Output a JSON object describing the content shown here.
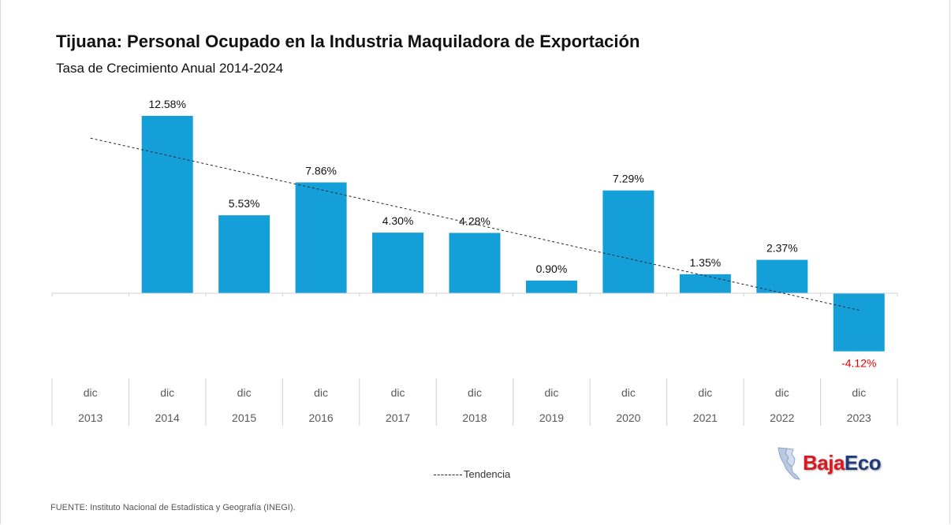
{
  "header": {
    "title": "Tijuana: Personal Ocupado en la Industria Maquiladora de Exportación",
    "subtitle": "Tasa de Crecimiento Anual 2014-2024"
  },
  "legend": {
    "trend_label": "Tendencia"
  },
  "source": "FUENTE: Instituto Nacional de Estadística y Geografía (INEGI).",
  "logo": {
    "part1": "Baja",
    "part2": "Eco"
  },
  "colors": {
    "bar": "#149fd9",
    "negative_label": "#e00000",
    "trend": "#222222"
  },
  "chart_data": {
    "type": "bar",
    "title": "Tijuana: Personal Ocupado en la Industria Maquiladora de Exportación",
    "subtitle": "Tasa de Crecimiento Anual 2014-2024",
    "categories": [
      {
        "month": "dic",
        "year": "2013"
      },
      {
        "month": "dic",
        "year": "2014"
      },
      {
        "month": "dic",
        "year": "2015"
      },
      {
        "month": "dic",
        "year": "2016"
      },
      {
        "month": "dic",
        "year": "2017"
      },
      {
        "month": "dic",
        "year": "2018"
      },
      {
        "month": "dic",
        "year": "2019"
      },
      {
        "month": "dic",
        "year": "2020"
      },
      {
        "month": "dic",
        "year": "2021"
      },
      {
        "month": "dic",
        "year": "2022"
      },
      {
        "month": "dic",
        "year": "2023"
      }
    ],
    "values": [
      null,
      12.58,
      5.53,
      7.86,
      4.3,
      4.28,
      0.9,
      7.29,
      1.35,
      2.37,
      -4.12
    ],
    "labels": [
      "",
      "12.58%",
      "5.53%",
      "7.86%",
      "4.30%",
      "4.28%",
      "0.90%",
      "7.29%",
      "1.35%",
      "2.37%",
      "-4.12%"
    ],
    "trendline": {
      "type": "linear",
      "label": "Tendencia",
      "start": 11.0,
      "end": -1.2
    },
    "grid": false,
    "legend_position": "bottom"
  }
}
